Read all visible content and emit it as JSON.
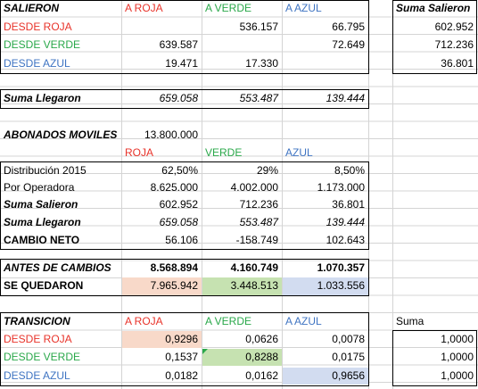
{
  "salieron": {
    "title": "SALIERON",
    "headers": [
      "A ROJA",
      "A VERDE",
      "A AZUL"
    ],
    "suma_header": "Suma Salieron",
    "rows": [
      {
        "label": "DESDE ROJA",
        "values": [
          "",
          "536.157",
          "66.795"
        ],
        "suma": "602.952"
      },
      {
        "label": "DESDE VERDE",
        "values": [
          "639.587",
          "",
          "72.649"
        ],
        "suma": "712.236"
      },
      {
        "label": "DESDE AZUL",
        "values": [
          "19.471",
          "17.330",
          ""
        ],
        "suma": "36.801"
      }
    ]
  },
  "llegaron": {
    "label": "Suma Llegaron",
    "values": [
      "659.058",
      "553.487",
      "139.444"
    ]
  },
  "abonados": {
    "label": "ABONADOS MOVILES",
    "value": "13.800.000",
    "headers": [
      "ROJA",
      "VERDE",
      "AZUL"
    ],
    "rows": [
      {
        "label": "Distribución 2015",
        "values": [
          "62,50%",
          "29%",
          "8,50%"
        ]
      },
      {
        "label": "Por Operadora",
        "values": [
          "8.625.000",
          "4.002.000",
          "1.173.000"
        ]
      },
      {
        "label": "Suma Salieron",
        "values": [
          "602.952",
          "712.236",
          "36.801"
        ]
      },
      {
        "label": "Suma Llegaron",
        "values": [
          "659.058",
          "553.487",
          "139.444"
        ]
      },
      {
        "label": "CAMBIO NETO",
        "values": [
          "56.106",
          "-158.749",
          "102.643"
        ]
      }
    ]
  },
  "antes": {
    "label": "ANTES DE CAMBIOS",
    "values": [
      "8.568.894",
      "4.160.749",
      "1.070.357"
    ]
  },
  "quedaron": {
    "label": "SE QUEDARON",
    "values": [
      "7.965.942",
      "3.448.513",
      "1.033.556"
    ]
  },
  "transicion": {
    "title": "TRANSICION",
    "headers": [
      "A ROJA",
      "A VERDE",
      "A AZUL"
    ],
    "suma_header": "Suma",
    "rows": [
      {
        "label": "DESDE ROJA",
        "values": [
          "0,9296",
          "0,0626",
          "0,0078"
        ],
        "suma": "1,0000"
      },
      {
        "label": "DESDE VERDE",
        "values": [
          "0,1537",
          "0,8288",
          "0,0175"
        ],
        "suma": "1,0000"
      },
      {
        "label": "DESDE AZUL",
        "values": [
          "0,0182",
          "0,0162",
          "0,9656"
        ],
        "suma": "1,0000"
      }
    ]
  },
  "colors": {
    "red": "#e8332a",
    "green": "#2aa84a",
    "blue": "#3f74c2"
  }
}
